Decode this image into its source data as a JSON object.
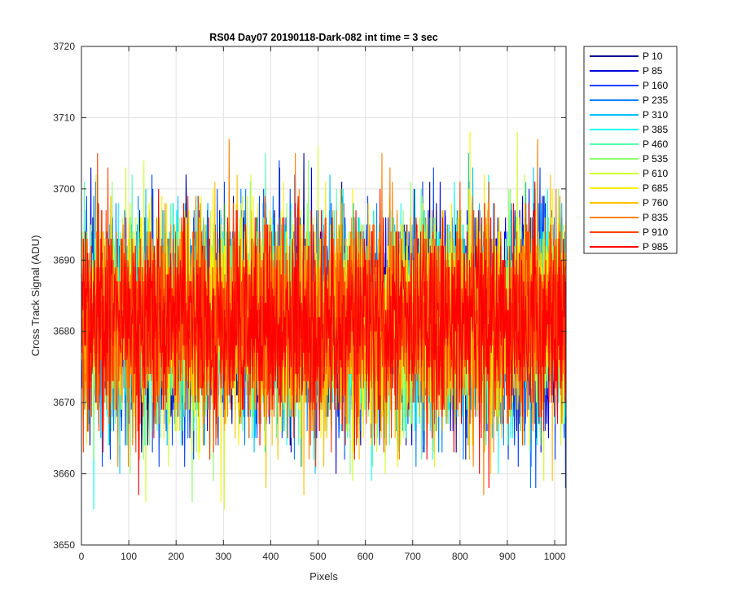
{
  "chart_data": {
    "type": "line",
    "title": "RS04 Day07 20190118-Dark-082 int time = 3 sec",
    "xlabel": "Pixels",
    "ylabel": "Cross Track Signal (ADU)",
    "xlim": [
      0,
      1024
    ],
    "ylim": [
      3650,
      3720
    ],
    "xticks": [
      0,
      100,
      200,
      300,
      400,
      500,
      600,
      700,
      800,
      900,
      1000
    ],
    "yticks": [
      3650,
      3660,
      3670,
      3680,
      3690,
      3700,
      3710,
      3720
    ],
    "grid": true,
    "legend_position": "outside-top-right",
    "noise_model": {
      "mean": 3681.5,
      "std": 7.2,
      "min": 3651,
      "max": 3711,
      "points_per_series": 1024
    },
    "series": [
      {
        "name": "P 10",
        "color": "#00008f"
      },
      {
        "name": "P 85",
        "color": "#0000df"
      },
      {
        "name": "P 160",
        "color": "#0040ff"
      },
      {
        "name": "P 235",
        "color": "#0080ff"
      },
      {
        "name": "P 310",
        "color": "#00bfff"
      },
      {
        "name": "P 385",
        "color": "#10ffef"
      },
      {
        "name": "P 460",
        "color": "#50ffaf"
      },
      {
        "name": "P 535",
        "color": "#8fff70"
      },
      {
        "name": "P 610",
        "color": "#cfff30"
      },
      {
        "name": "P 685",
        "color": "#ffef00"
      },
      {
        "name": "P 760",
        "color": "#ffbf00"
      },
      {
        "name": "P 835",
        "color": "#ff7f00"
      },
      {
        "name": "P 910",
        "color": "#ff4000"
      },
      {
        "name": "P 985",
        "color": "#ff0000"
      }
    ]
  }
}
